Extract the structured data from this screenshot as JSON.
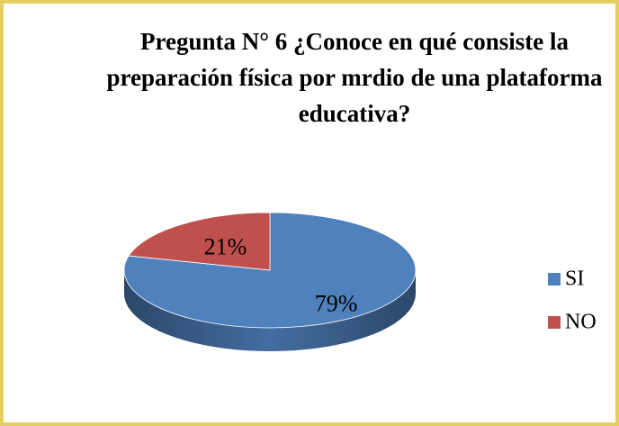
{
  "chart_data": {
    "type": "pie",
    "title": "Pregunta N° 6 ¿Conoce en qué consiste la preparación física por mrdio de una plataforma educativa?",
    "categories": [
      "SI",
      "NO"
    ],
    "values": [
      79,
      21
    ],
    "value_labels": [
      "79%",
      "21%"
    ],
    "colors": [
      "#4f81bd",
      "#c0504d"
    ],
    "legend": "right"
  }
}
